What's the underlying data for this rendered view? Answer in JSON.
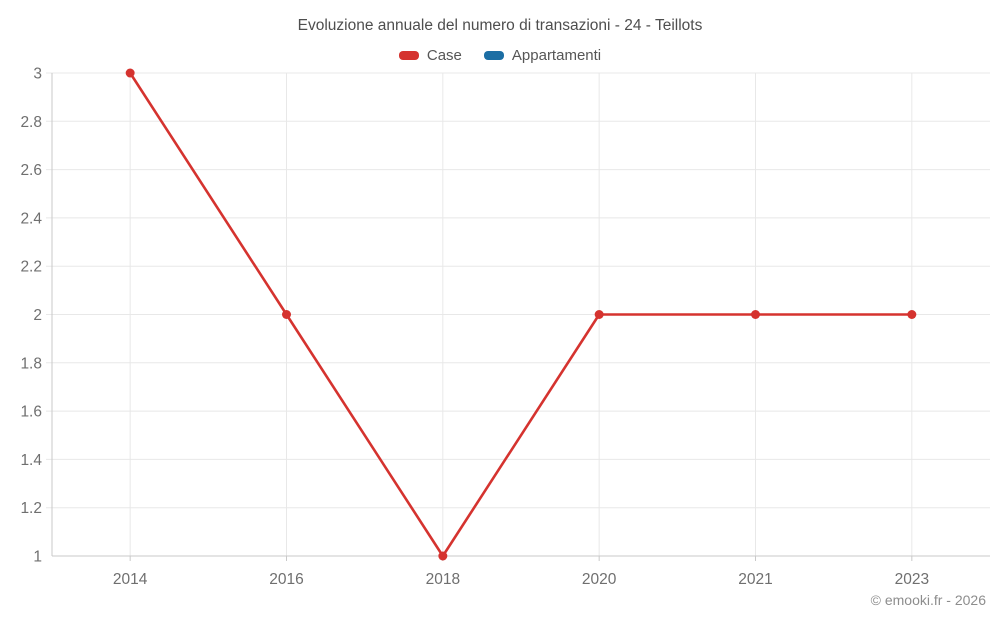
{
  "chart": {
    "title": "Evoluzione annuale del numero di transazioni - 24 - Teillots",
    "attribution": "© emooki.fr - 2026"
  },
  "legend": {
    "items": [
      {
        "label": "Case",
        "color": "#d5332f"
      },
      {
        "label": "Appartamenti",
        "color": "#1c6ea4"
      }
    ]
  },
  "chart_data": {
    "type": "line",
    "title": "Evoluzione annuale del numero di transazioni - 24 - Teillots",
    "categories": [
      "2014",
      "2016",
      "2018",
      "2020",
      "2021",
      "2023"
    ],
    "series": [
      {
        "name": "Case",
        "color": "#d5332f",
        "values": [
          3,
          2,
          1,
          2,
          2,
          2
        ]
      },
      {
        "name": "Appartamenti",
        "color": "#1c6ea4",
        "values": []
      }
    ],
    "xlabel": "",
    "ylabel": "",
    "ylim": [
      1,
      3
    ],
    "yticks": [
      3,
      2.8,
      2.6,
      2.4,
      2.2,
      2,
      1.8,
      1.6,
      1.4,
      1.2,
      1
    ],
    "ytick_labels": [
      "3",
      "2.8",
      "2.6",
      "2.4",
      "2.2",
      "2",
      "1.8",
      "1.6",
      "1.4",
      "1.2",
      "1"
    ],
    "grid": true,
    "legend_position": "top",
    "colors": {
      "grid": "#e8e8e8",
      "axis": "#c9c9c9",
      "tick_label": "#6f6f6f"
    }
  }
}
